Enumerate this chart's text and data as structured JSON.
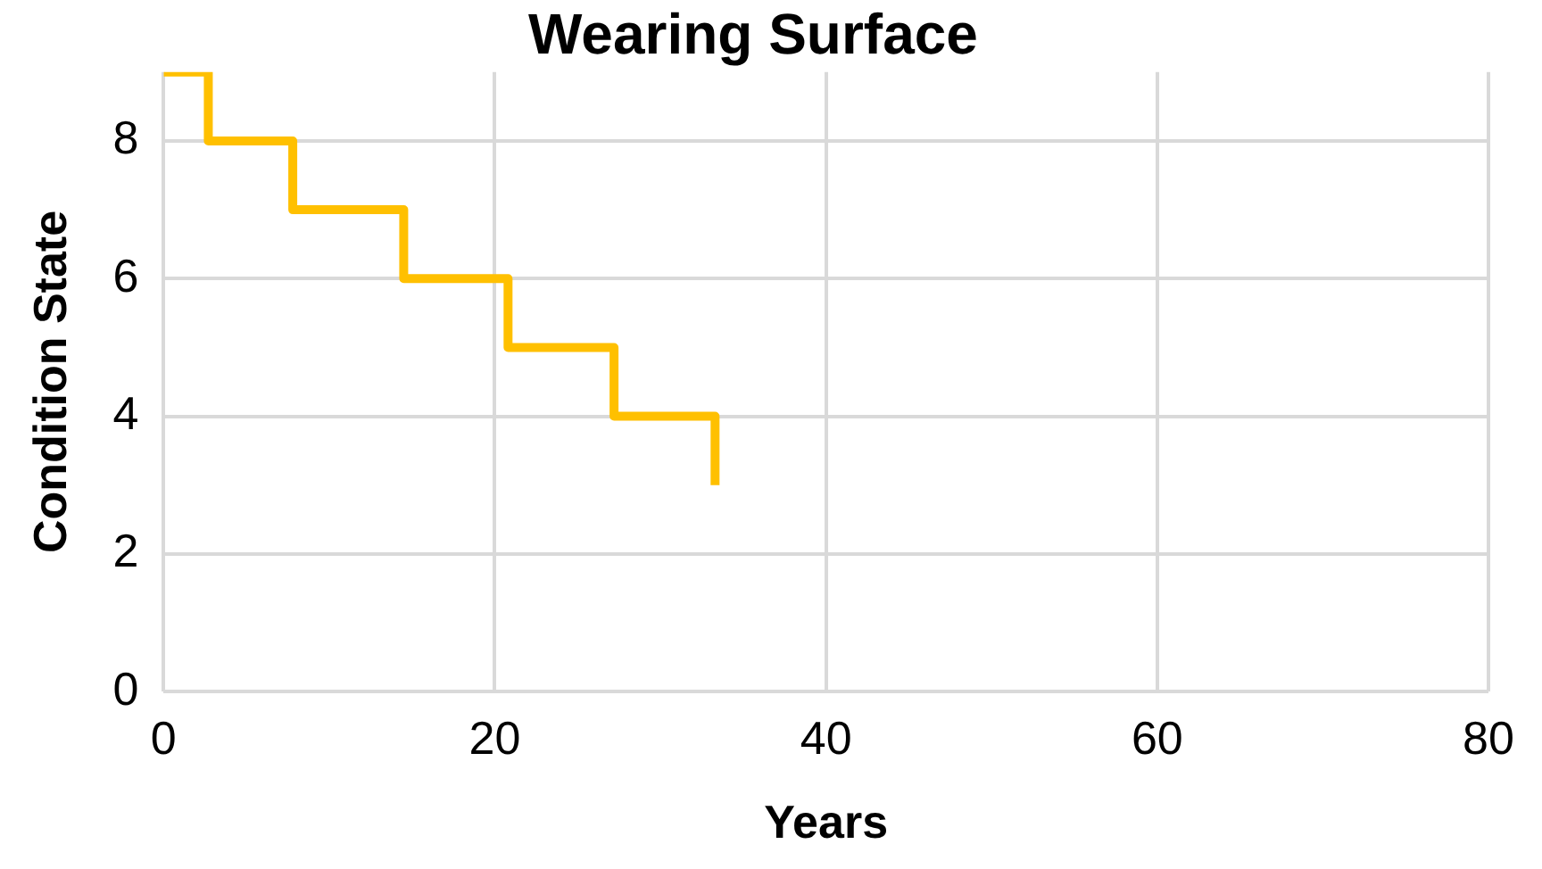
{
  "chart_data": {
    "type": "step",
    "title": "Wearing Surface",
    "xlabel": "Years",
    "ylabel": "Condition State",
    "x": [
      0,
      2.7,
      7.8,
      14.5,
      20.8,
      27.2,
      33.3
    ],
    "series": [
      {
        "color": "#ffc000",
        "values": [
          9,
          8,
          7,
          6,
          5,
          4,
          3
        ]
      }
    ],
    "xlim": [
      0,
      80
    ],
    "xticks": [
      0,
      20,
      40,
      60,
      80
    ],
    "ylim": [
      0,
      9
    ],
    "yticks": [
      0,
      2,
      4,
      6,
      8
    ],
    "grid": true,
    "legend": false,
    "marker": "none",
    "line_style": "solid"
  }
}
